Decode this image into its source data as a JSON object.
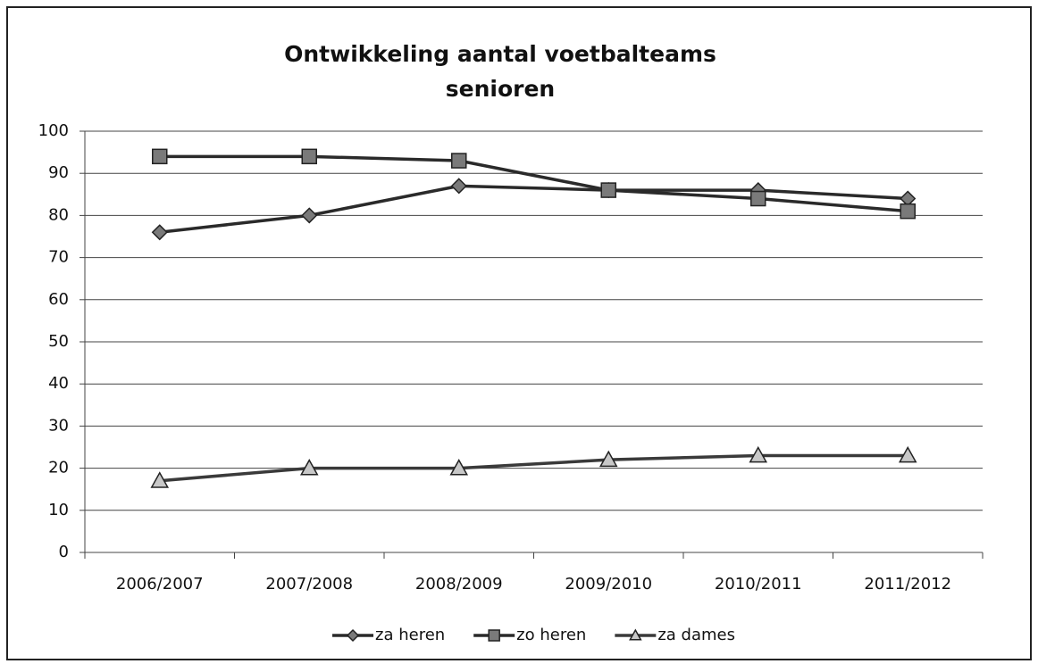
{
  "chart_data": {
    "type": "line",
    "title": [
      "Ontwikkeling aantal voetbalteams",
      "senioren"
    ],
    "categories": [
      "2006/2007",
      "2007/2008",
      "2008/2009",
      "2009/2010",
      "2010/2011",
      "2011/2012"
    ],
    "series": [
      {
        "name": "za heren",
        "color": "#2a2a2a",
        "marker": "diamond",
        "marker_color": "#7a7a7a",
        "values": [
          76,
          80,
          87,
          86,
          86,
          84
        ]
      },
      {
        "name": "zo heren",
        "color": "#2a2a2a",
        "marker": "square",
        "marker_color": "#7a7a7a",
        "values": [
          94,
          94,
          93,
          86,
          84,
          81
        ]
      },
      {
        "name": "za dames",
        "color": "#3a3a3a",
        "marker": "triangle",
        "marker_color": "#c8c8c8",
        "values": [
          17,
          20,
          20,
          22,
          23,
          23
        ]
      }
    ],
    "ylim": [
      0,
      100
    ],
    "yticks": [
      0,
      10,
      20,
      30,
      40,
      50,
      60,
      70,
      80,
      90,
      100
    ],
    "grid": true,
    "legend": "bottom"
  }
}
